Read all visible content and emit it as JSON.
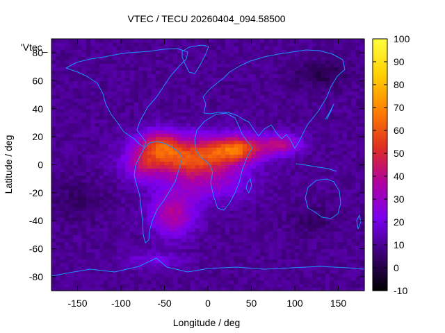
{
  "chart_data": {
    "type": "heatmap",
    "title": "VTEC / TECU 20260404_094.58500",
    "xlabel": "Longitude / deg",
    "ylabel": "Latitude / deg",
    "series_label": "'Vtec_",
    "xlim": [
      -180,
      180
    ],
    "ylim": [
      -90,
      90
    ],
    "xticks": [
      -150,
      -100,
      -50,
      0,
      50,
      100,
      150
    ],
    "yticks": [
      -80,
      -60,
      -40,
      -20,
      0,
      20,
      40,
      60,
      80
    ],
    "colorbar": {
      "min": -10,
      "max": 100,
      "ticks": [
        -10,
        0,
        10,
        20,
        30,
        40,
        50,
        60,
        70,
        80,
        90,
        100
      ],
      "palette": [
        "#000000",
        "#3a0070",
        "#7a00f0",
        "#b000a0",
        "#e03020",
        "#ff8000",
        "#ffd000",
        "#ffff40"
      ]
    },
    "grid": {
      "lon_step": 5,
      "lat_step": 2.5,
      "background_tecu": 10,
      "features": [
        {
          "lon": -20,
          "lat": 5,
          "slon": 55,
          "slat": 14,
          "amp": 50
        },
        {
          "lon": 35,
          "lat": 12,
          "slon": 30,
          "slat": 9,
          "amp": 42
        },
        {
          "lon": -55,
          "lat": 15,
          "slon": 22,
          "slat": 10,
          "amp": 30
        },
        {
          "lon": 85,
          "lat": 15,
          "slon": 22,
          "slat": 7,
          "amp": 28
        },
        {
          "lon": -40,
          "lat": -35,
          "slon": 25,
          "slat": 15,
          "amp": 28
        },
        {
          "lon": -75,
          "lat": 0,
          "slon": 18,
          "slat": 12,
          "amp": 18
        },
        {
          "lon": 0,
          "lat": -15,
          "slon": 45,
          "slat": 12,
          "amp": 15
        },
        {
          "lon": -60,
          "lat": -68,
          "slon": 35,
          "slat": 6,
          "amp": 10
        },
        {
          "lon": 130,
          "lat": 65,
          "slon": 30,
          "slat": 10,
          "amp": -9
        },
        {
          "lon": -150,
          "lat": -25,
          "slon": 30,
          "slat": 15,
          "amp": -6
        },
        {
          "lon": 120,
          "lat": -40,
          "slon": 25,
          "slat": 10,
          "amp": -6
        }
      ]
    }
  }
}
